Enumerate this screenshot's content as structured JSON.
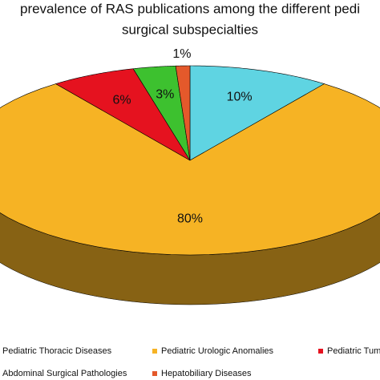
{
  "chart_data": {
    "type": "pie",
    "title": [
      "prevalence of RAS publications among the different pedi",
      "surgical subspecialties"
    ],
    "categories": [
      "Pediatric Thoracic Diseases",
      "Pediatric Urologic Anomalies",
      "Pediatric Tum",
      "Abdominal Surgical Pathologies",
      "Hepatobiliary Diseases"
    ],
    "values": [
      10,
      80,
      6,
      3,
      1
    ],
    "value_labels": [
      "10%",
      "80%",
      "6%",
      "3%",
      "1%"
    ],
    "colors": [
      "#5fd4e2",
      "#f6b324",
      "#e5121f",
      "#3dc12f",
      "#e4592b"
    ]
  }
}
